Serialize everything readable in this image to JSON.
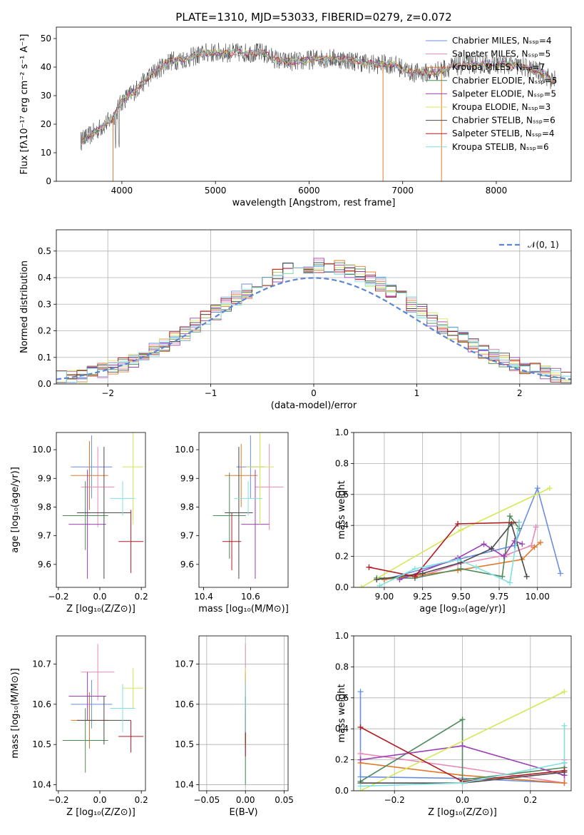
{
  "title": "PLATE=1310, MJD=53033, FIBERID=0279, z=0.072",
  "colors": [
    "#6a8ee0",
    "#e889b8",
    "#e07a28",
    "#4e8a5a",
    "#9b3fb3",
    "#d4e858",
    "#4a4a4a",
    "#b01c22",
    "#7fe0e0"
  ],
  "chart_data": [
    {
      "id": "spectrum",
      "type": "line",
      "title": "PLATE=1310, MJD=53033, FIBERID=0279, z=0.072",
      "xlabel": "wavelength [Angstrom, rest frame]",
      "ylabel": "Flux [fλ10⁻¹⁷ erg cm⁻² s⁻¹ A⁻¹]",
      "xlim": [
        3300,
        8800
      ],
      "ylim": [
        0,
        54
      ],
      "xticks": [
        4000,
        5000,
        6000,
        7000,
        8000
      ],
      "yticks": [
        0,
        10,
        20,
        30,
        40,
        50
      ],
      "continuum_x": [
        3560,
        3700,
        3900,
        4000,
        4150,
        4300,
        4500,
        4700,
        4900,
        5100,
        5300,
        5500,
        5700,
        5900,
        6100,
        6300,
        6500,
        6700,
        6900,
        7100,
        7300,
        7500,
        7700,
        7900,
        8100,
        8300,
        8500,
        8600,
        8640
      ],
      "continuum_y": [
        14,
        17,
        22,
        28,
        32,
        37,
        42,
        43,
        45,
        45,
        45,
        45,
        42,
        42,
        43,
        43,
        42,
        41,
        41,
        38,
        38,
        40,
        41,
        41,
        41,
        40,
        38,
        35,
        36
      ],
      "series": [
        {
          "name": "Chabrier MILES, Nₛₛₚ=4"
        },
        {
          "name": "Salpeter MILES, Nₛₛₚ=5"
        },
        {
          "name": "Kroupa MILES, Nₛₛₚ=7"
        },
        {
          "name": "Chabrier ELODIE, Nₛₛₚ=5"
        },
        {
          "name": "Salpeter ELODIE, Nₛₛₚ=5"
        },
        {
          "name": "Kroupa ELODIE, Nₛₛₚ=3"
        },
        {
          "name": "Chabrier STELIB, Nₛₛₚ=6"
        },
        {
          "name": "Salpeter STELIB, Nₛₛₚ=4"
        },
        {
          "name": "Kroupa STELIB, Nₛₛₚ=6"
        }
      ],
      "legend": "top-right"
    },
    {
      "id": "residuals",
      "type": "histogram",
      "xlabel": "(data-model)/error",
      "ylabel": "Normed distribution",
      "xlim": [
        -2.5,
        2.5
      ],
      "ylim": [
        0,
        0.58
      ],
      "xticks": [
        -2,
        -1,
        0,
        1,
        2
      ],
      "yticks": [
        0.0,
        0.1,
        0.2,
        0.3,
        0.4,
        0.5
      ],
      "bin_width": 0.1,
      "reference": {
        "name": "𝒩(0, 1)",
        "type": "gaussian",
        "mean": 0,
        "sigma": 1
      },
      "legend": "top-right",
      "grid": true
    },
    {
      "id": "age-vs-Z",
      "type": "errorbar",
      "xlabel": "Z [log₁₀(Z/Z⊙)]",
      "ylabel": "age  [log₁₀(age/yr)]",
      "xlim": [
        -0.21,
        0.22
      ],
      "ylim": [
        9.52,
        10.06
      ],
      "xticks": [
        -0.2,
        0.0,
        0.2
      ],
      "yticks": [
        9.6,
        9.7,
        9.8,
        9.9,
        10.0
      ],
      "points": [
        {
          "x": -0.04,
          "y": 9.94,
          "xerr": 0.1,
          "yerr": 0.11
        },
        {
          "x": -0.01,
          "y": 9.87,
          "xerr": 0.08,
          "yerr": 0.14
        },
        {
          "x": -0.05,
          "y": 9.91,
          "xerr": 0.09,
          "yerr": 0.12
        },
        {
          "x": -0.07,
          "y": 9.77,
          "xerr": 0.11,
          "yerr": 0.12
        },
        {
          "x": -0.06,
          "y": 9.74,
          "xerr": 0.09,
          "yerr": 0.19
        },
        {
          "x": 0.16,
          "y": 9.94,
          "xerr": 0.05,
          "yerr": 0.2
        },
        {
          "x": 0.02,
          "y": 9.78,
          "xerr": 0.13,
          "yerr": 0.23
        },
        {
          "x": 0.15,
          "y": 9.68,
          "xerr": 0.06,
          "yerr": 0.11
        },
        {
          "x": 0.11,
          "y": 9.83,
          "xerr": 0.06,
          "yerr": 0.06
        }
      ]
    },
    {
      "id": "age-vs-mass",
      "type": "errorbar",
      "xlabel": "mass [log₁₀(M/M⊙)]",
      "ylabel": "",
      "xlim": [
        10.38,
        10.76
      ],
      "ylim": [
        9.52,
        10.06
      ],
      "xticks": [
        10.4,
        10.6
      ],
      "yticks": [
        9.6,
        9.7,
        9.8,
        9.9,
        10.0
      ],
      "points": [
        {
          "x": 10.6,
          "y": 9.94,
          "xerr": 0.06,
          "yerr": 0.11
        },
        {
          "x": 10.68,
          "y": 9.87,
          "xerr": 0.06,
          "yerr": 0.15
        },
        {
          "x": 10.56,
          "y": 9.91,
          "xerr": 0.07,
          "yerr": 0.11
        },
        {
          "x": 10.51,
          "y": 9.77,
          "xerr": 0.07,
          "yerr": 0.15
        },
        {
          "x": 10.62,
          "y": 9.74,
          "xerr": 0.06,
          "yerr": 0.19
        },
        {
          "x": 10.64,
          "y": 9.94,
          "xerr": 0.06,
          "yerr": 0.2
        },
        {
          "x": 10.55,
          "y": 9.78,
          "xerr": 0.06,
          "yerr": 0.23
        },
        {
          "x": 10.52,
          "y": 9.68,
          "xerr": 0.04,
          "yerr": 0.1
        },
        {
          "x": 10.59,
          "y": 9.83,
          "xerr": 0.06,
          "yerr": 0.06
        }
      ]
    },
    {
      "id": "massweight-vs-age",
      "type": "line",
      "xlabel": "age  [log₁₀(age/yr)]",
      "ylabel": "mass weight",
      "xlim": [
        8.8,
        10.22
      ],
      "ylim": [
        0,
        1
      ],
      "xticks": [
        9.0,
        9.25,
        9.5,
        9.75,
        10.0
      ],
      "yticks": [
        0.0,
        0.2,
        0.4,
        0.6,
        0.8,
        1.0
      ],
      "grid": true,
      "series": [
        {
          "x": [
            9.0,
            9.48,
            9.85,
            10.0,
            10.15
          ],
          "y": [
            0.05,
            0.18,
            0.27,
            0.64,
            0.09
          ]
        },
        {
          "x": [
            9.2,
            9.48,
            9.8,
            9.96,
            9.99
          ],
          "y": [
            0.06,
            0.15,
            0.21,
            0.27,
            0.39
          ]
        },
        {
          "x": [
            9.0,
            9.48,
            9.9,
            9.98,
            10.02
          ],
          "y": [
            0.05,
            0.11,
            0.18,
            0.26,
            0.29
          ]
        },
        {
          "x": [
            8.95,
            9.2,
            9.5,
            9.77,
            9.82,
            9.88
          ],
          "y": [
            0.06,
            0.06,
            0.12,
            0.07,
            0.46,
            0.38
          ]
        },
        {
          "x": [
            9.1,
            9.48,
            9.65,
            9.78,
            9.85,
            9.9
          ],
          "y": [
            0.05,
            0.19,
            0.28,
            0.2,
            0.3,
            0.28
          ]
        },
        {
          "x": [
            8.85,
            9.5,
            10.08
          ],
          "y": [
            0.0,
            0.37,
            0.64
          ]
        },
        {
          "x": [
            8.95,
            9.25,
            9.5,
            9.7,
            9.83,
            9.93
          ],
          "y": [
            0.05,
            0.09,
            0.16,
            0.25,
            0.41,
            0.07
          ]
        },
        {
          "x": [
            8.9,
            9.2,
            9.48,
            9.88
          ],
          "y": [
            0.13,
            0.07,
            0.41,
            0.42
          ]
        },
        {
          "x": [
            8.97,
            9.2,
            9.48,
            9.6,
            9.82,
            9.88
          ],
          "y": [
            0.01,
            0.12,
            0.18,
            0.13,
            0.03,
            0.42
          ]
        }
      ]
    },
    {
      "id": "mass-vs-Z",
      "type": "errorbar",
      "xlabel": "Z [log₁₀(Z/Z⊙)]",
      "ylabel": "mass [log₁₀(M/M⊙)]",
      "xlim": [
        -0.21,
        0.22
      ],
      "ylim": [
        10.385,
        10.77
      ],
      "xticks": [
        -0.2,
        0.0,
        0.2
      ],
      "yticks": [
        10.4,
        10.5,
        10.6,
        10.7
      ],
      "points": [
        {
          "x": -0.04,
          "y": 10.6,
          "xerr": 0.1,
          "yerr": 0.06
        },
        {
          "x": -0.01,
          "y": 10.68,
          "xerr": 0.08,
          "yerr": 0.07
        },
        {
          "x": -0.05,
          "y": 10.56,
          "xerr": 0.09,
          "yerr": 0.07
        },
        {
          "x": -0.07,
          "y": 10.51,
          "xerr": 0.11,
          "yerr": 0.08
        },
        {
          "x": -0.06,
          "y": 10.62,
          "xerr": 0.09,
          "yerr": 0.06
        },
        {
          "x": 0.16,
          "y": 10.64,
          "xerr": 0.05,
          "yerr": 0.05
        },
        {
          "x": 0.02,
          "y": 10.56,
          "xerr": 0.13,
          "yerr": 0.06
        },
        {
          "x": 0.15,
          "y": 10.52,
          "xerr": 0.06,
          "yerr": 0.04
        },
        {
          "x": 0.11,
          "y": 10.59,
          "xerr": 0.06,
          "yerr": 0.06
        }
      ]
    },
    {
      "id": "mass-vs-EBV",
      "type": "errorbar",
      "xlabel": "E(B-V)",
      "ylabel": "",
      "xlim": [
        -0.06,
        0.055
      ],
      "ylim": [
        10.385,
        10.77
      ],
      "xticks": [
        -0.05,
        0.0,
        0.05
      ],
      "yticks": [
        10.4,
        10.5,
        10.6,
        10.7
      ],
      "grid": true,
      "points": [
        {
          "x": 0.0,
          "y": 10.6,
          "xerr": 0,
          "yerr": 0.06
        },
        {
          "x": 0.0,
          "y": 10.68,
          "xerr": 0,
          "yerr": 0.07
        },
        {
          "x": 0.0,
          "y": 10.56,
          "xerr": 0,
          "yerr": 0.07
        },
        {
          "x": 0.0,
          "y": 10.51,
          "xerr": 0,
          "yerr": 0.11
        },
        {
          "x": 0.0,
          "y": 10.62,
          "xerr": 0,
          "yerr": 0.06
        },
        {
          "x": 0.0,
          "y": 10.64,
          "xerr": 0,
          "yerr": 0.05
        },
        {
          "x": 0.0,
          "y": 10.56,
          "xerr": 0,
          "yerr": 0.06
        },
        {
          "x": 0.0,
          "y": 10.52,
          "xerr": 0,
          "yerr": 0.05
        },
        {
          "x": 0.0,
          "y": 10.59,
          "xerr": 0,
          "yerr": 0.06
        }
      ]
    },
    {
      "id": "massweight-vs-Z",
      "type": "line",
      "xlabel": "Z [log₁₀(Z/Z⊙)]",
      "ylabel": "mass weight",
      "xlim": [
        -0.32,
        0.32
      ],
      "ylim": [
        0,
        1
      ],
      "xticks": [
        -0.2,
        0.0,
        0.2
      ],
      "yticks": [
        0.0,
        0.2,
        0.4,
        0.6,
        0.8,
        1.0
      ],
      "grid": true,
      "series": [
        {
          "x": [
            -0.3,
            -0.3,
            0.0,
            0.3,
            0.3
          ],
          "y": [
            0.64,
            0.09,
            0.08,
            0.05,
            0.18
          ]
        },
        {
          "x": [
            -0.3,
            0.0,
            0.3,
            0.3
          ],
          "y": [
            0.24,
            0.15,
            0.05,
            0.2
          ]
        },
        {
          "x": [
            -0.3,
            0.0,
            0.3
          ],
          "y": [
            0.18,
            0.1,
            0.05
          ]
        },
        {
          "x": [
            -0.3,
            0.0,
            0.0,
            0.3
          ],
          "y": [
            0.06,
            0.46,
            0.07,
            0.15
          ]
        },
        {
          "x": [
            -0.3,
            0.0,
            0.3
          ],
          "y": [
            0.2,
            0.29,
            0.1
          ]
        },
        {
          "x": [
            -0.3,
            0.3
          ],
          "y": [
            0.0,
            0.64
          ]
        },
        {
          "x": [
            -0.3,
            0.0,
            0.3
          ],
          "y": [
            0.05,
            0.05,
            0.12
          ]
        },
        {
          "x": [
            -0.3,
            0.0,
            0.3
          ],
          "y": [
            0.41,
            0.06,
            0.13
          ]
        },
        {
          "x": [
            -0.3,
            0.0,
            0.3,
            0.3
          ],
          "y": [
            0.03,
            0.05,
            0.18,
            0.42
          ]
        }
      ]
    }
  ]
}
